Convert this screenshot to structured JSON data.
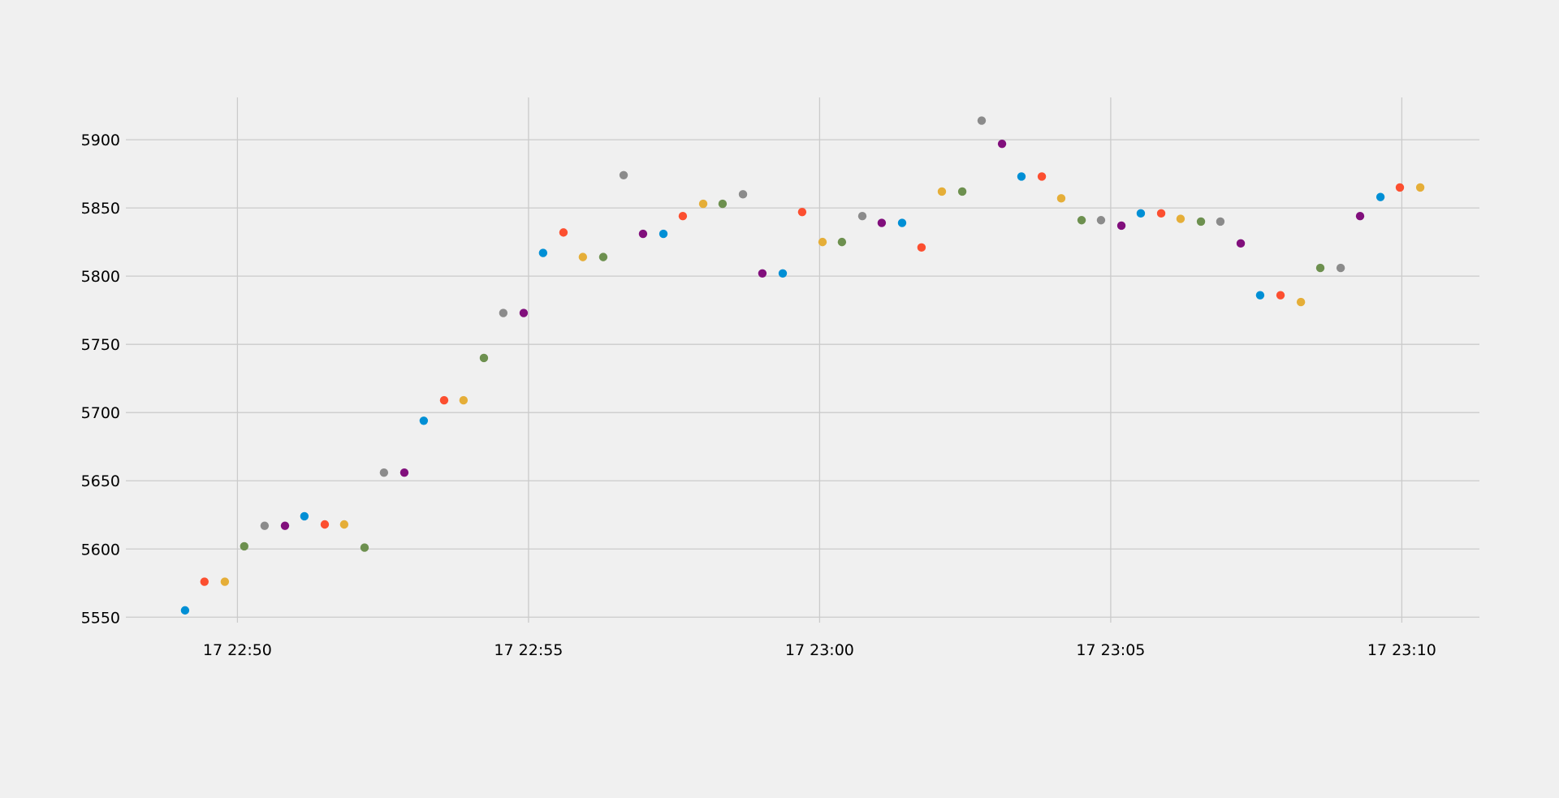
{
  "chart_data": {
    "type": "scatter",
    "title": "",
    "xlabel": "",
    "ylabel": "",
    "grid": true,
    "x_axis": {
      "kind": "time",
      "range": [
        "2024-01-17T22:48:05",
        "2024-01-17T23:11:20"
      ],
      "ticks": [
        "17 22:50",
        "17 22:55",
        "17 23:00",
        "17 23:05",
        "17 23:10"
      ]
    },
    "y_axis": {
      "range": [
        5546,
        5931
      ],
      "ticks": [
        "5550",
        "5600",
        "5650",
        "5700",
        "5750",
        "5800",
        "5850",
        "5900"
      ]
    },
    "colors": [
      "#008fd5",
      "#fc4f30",
      "#e5ae38",
      "#6d904f",
      "#8b8b8b",
      "#810f7c"
    ],
    "points": [
      {
        "x": "2024-01-17T22:49:06",
        "y": 5555,
        "color": "#008fd5"
      },
      {
        "x": "2024-01-17T22:49:26",
        "y": 5576,
        "color": "#fc4f30"
      },
      {
        "x": "2024-01-17T22:49:47",
        "y": 5576,
        "color": "#e5ae38"
      },
      {
        "x": "2024-01-17T22:50:07",
        "y": 5602,
        "color": "#6d904f"
      },
      {
        "x": "2024-01-17T22:50:28",
        "y": 5617,
        "color": "#8b8b8b"
      },
      {
        "x": "2024-01-17T22:50:49",
        "y": 5617,
        "color": "#810f7c"
      },
      {
        "x": "2024-01-17T22:51:09",
        "y": 5624,
        "color": "#008fd5"
      },
      {
        "x": "2024-01-17T22:51:30",
        "y": 5618,
        "color": "#fc4f30"
      },
      {
        "x": "2024-01-17T22:51:50",
        "y": 5618,
        "color": "#e5ae38"
      },
      {
        "x": "2024-01-17T22:52:11",
        "y": 5601,
        "color": "#6d904f"
      },
      {
        "x": "2024-01-17T22:52:31",
        "y": 5656,
        "color": "#8b8b8b"
      },
      {
        "x": "2024-01-17T22:52:52",
        "y": 5656,
        "color": "#810f7c"
      },
      {
        "x": "2024-01-17T22:53:12",
        "y": 5694,
        "color": "#008fd5"
      },
      {
        "x": "2024-01-17T22:53:33",
        "y": 5709,
        "color": "#fc4f30"
      },
      {
        "x": "2024-01-17T22:53:53",
        "y": 5709,
        "color": "#e5ae38"
      },
      {
        "x": "2024-01-17T22:54:14",
        "y": 5740,
        "color": "#6d904f"
      },
      {
        "x": "2024-01-17T22:54:34",
        "y": 5773,
        "color": "#8b8b8b"
      },
      {
        "x": "2024-01-17T22:54:55",
        "y": 5773,
        "color": "#810f7c"
      },
      {
        "x": "2024-01-17T22:55:15",
        "y": 5817,
        "color": "#008fd5"
      },
      {
        "x": "2024-01-17T22:55:36",
        "y": 5832,
        "color": "#fc4f30"
      },
      {
        "x": "2024-01-17T22:55:56",
        "y": 5814,
        "color": "#e5ae38"
      },
      {
        "x": "2024-01-17T22:56:17",
        "y": 5814,
        "color": "#6d904f"
      },
      {
        "x": "2024-01-17T22:56:38",
        "y": 5874,
        "color": "#8b8b8b"
      },
      {
        "x": "2024-01-17T22:56:58",
        "y": 5831,
        "color": "#810f7c"
      },
      {
        "x": "2024-01-17T22:57:19",
        "y": 5831,
        "color": "#008fd5"
      },
      {
        "x": "2024-01-17T22:57:39",
        "y": 5844,
        "color": "#fc4f30"
      },
      {
        "x": "2024-01-17T22:58:00",
        "y": 5853,
        "color": "#e5ae38"
      },
      {
        "x": "2024-01-17T22:58:20",
        "y": 5853,
        "color": "#6d904f"
      },
      {
        "x": "2024-01-17T22:58:41",
        "y": 5860,
        "color": "#8b8b8b"
      },
      {
        "x": "2024-01-17T22:59:01",
        "y": 5802,
        "color": "#810f7c"
      },
      {
        "x": "2024-01-17T22:59:22",
        "y": 5802,
        "color": "#008fd5"
      },
      {
        "x": "2024-01-17T22:59:42",
        "y": 5847,
        "color": "#fc4f30"
      },
      {
        "x": "2024-01-17T23:00:03",
        "y": 5825,
        "color": "#e5ae38"
      },
      {
        "x": "2024-01-17T23:00:23",
        "y": 5825,
        "color": "#6d904f"
      },
      {
        "x": "2024-01-17T23:00:44",
        "y": 5844,
        "color": "#8b8b8b"
      },
      {
        "x": "2024-01-17T23:01:04",
        "y": 5839,
        "color": "#810f7c"
      },
      {
        "x": "2024-01-17T23:01:25",
        "y": 5839,
        "color": "#008fd5"
      },
      {
        "x": "2024-01-17T23:01:45",
        "y": 5821,
        "color": "#fc4f30"
      },
      {
        "x": "2024-01-17T23:02:06",
        "y": 5862,
        "color": "#e5ae38"
      },
      {
        "x": "2024-01-17T23:02:27",
        "y": 5862,
        "color": "#6d904f"
      },
      {
        "x": "2024-01-17T23:02:47",
        "y": 5914,
        "color": "#8b8b8b"
      },
      {
        "x": "2024-01-17T23:03:08",
        "y": 5897,
        "color": "#810f7c"
      },
      {
        "x": "2024-01-17T23:03:28",
        "y": 5873,
        "color": "#008fd5"
      },
      {
        "x": "2024-01-17T23:03:49",
        "y": 5873,
        "color": "#fc4f30"
      },
      {
        "x": "2024-01-17T23:04:09",
        "y": 5857,
        "color": "#e5ae38"
      },
      {
        "x": "2024-01-17T23:04:30",
        "y": 5841,
        "color": "#6d904f"
      },
      {
        "x": "2024-01-17T23:04:50",
        "y": 5841,
        "color": "#8b8b8b"
      },
      {
        "x": "2024-01-17T23:05:11",
        "y": 5837,
        "color": "#810f7c"
      },
      {
        "x": "2024-01-17T23:05:31",
        "y": 5846,
        "color": "#008fd5"
      },
      {
        "x": "2024-01-17T23:05:52",
        "y": 5846,
        "color": "#fc4f30"
      },
      {
        "x": "2024-01-17T23:06:12",
        "y": 5842,
        "color": "#e5ae38"
      },
      {
        "x": "2024-01-17T23:06:33",
        "y": 5840,
        "color": "#6d904f"
      },
      {
        "x": "2024-01-17T23:06:53",
        "y": 5840,
        "color": "#8b8b8b"
      },
      {
        "x": "2024-01-17T23:07:14",
        "y": 5824,
        "color": "#810f7c"
      },
      {
        "x": "2024-01-17T23:07:34",
        "y": 5786,
        "color": "#008fd5"
      },
      {
        "x": "2024-01-17T23:07:55",
        "y": 5786,
        "color": "#fc4f30"
      },
      {
        "x": "2024-01-17T23:08:16",
        "y": 5781,
        "color": "#e5ae38"
      },
      {
        "x": "2024-01-17T23:08:36",
        "y": 5806,
        "color": "#6d904f"
      },
      {
        "x": "2024-01-17T23:08:57",
        "y": 5806,
        "color": "#8b8b8b"
      },
      {
        "x": "2024-01-17T23:09:17",
        "y": 5844,
        "color": "#810f7c"
      },
      {
        "x": "2024-01-17T23:09:38",
        "y": 5858,
        "color": "#008fd5"
      },
      {
        "x": "2024-01-17T23:09:58",
        "y": 5865,
        "color": "#fc4f30"
      },
      {
        "x": "2024-01-17T23:10:19",
        "y": 5865,
        "color": "#e5ae38"
      }
    ]
  }
}
